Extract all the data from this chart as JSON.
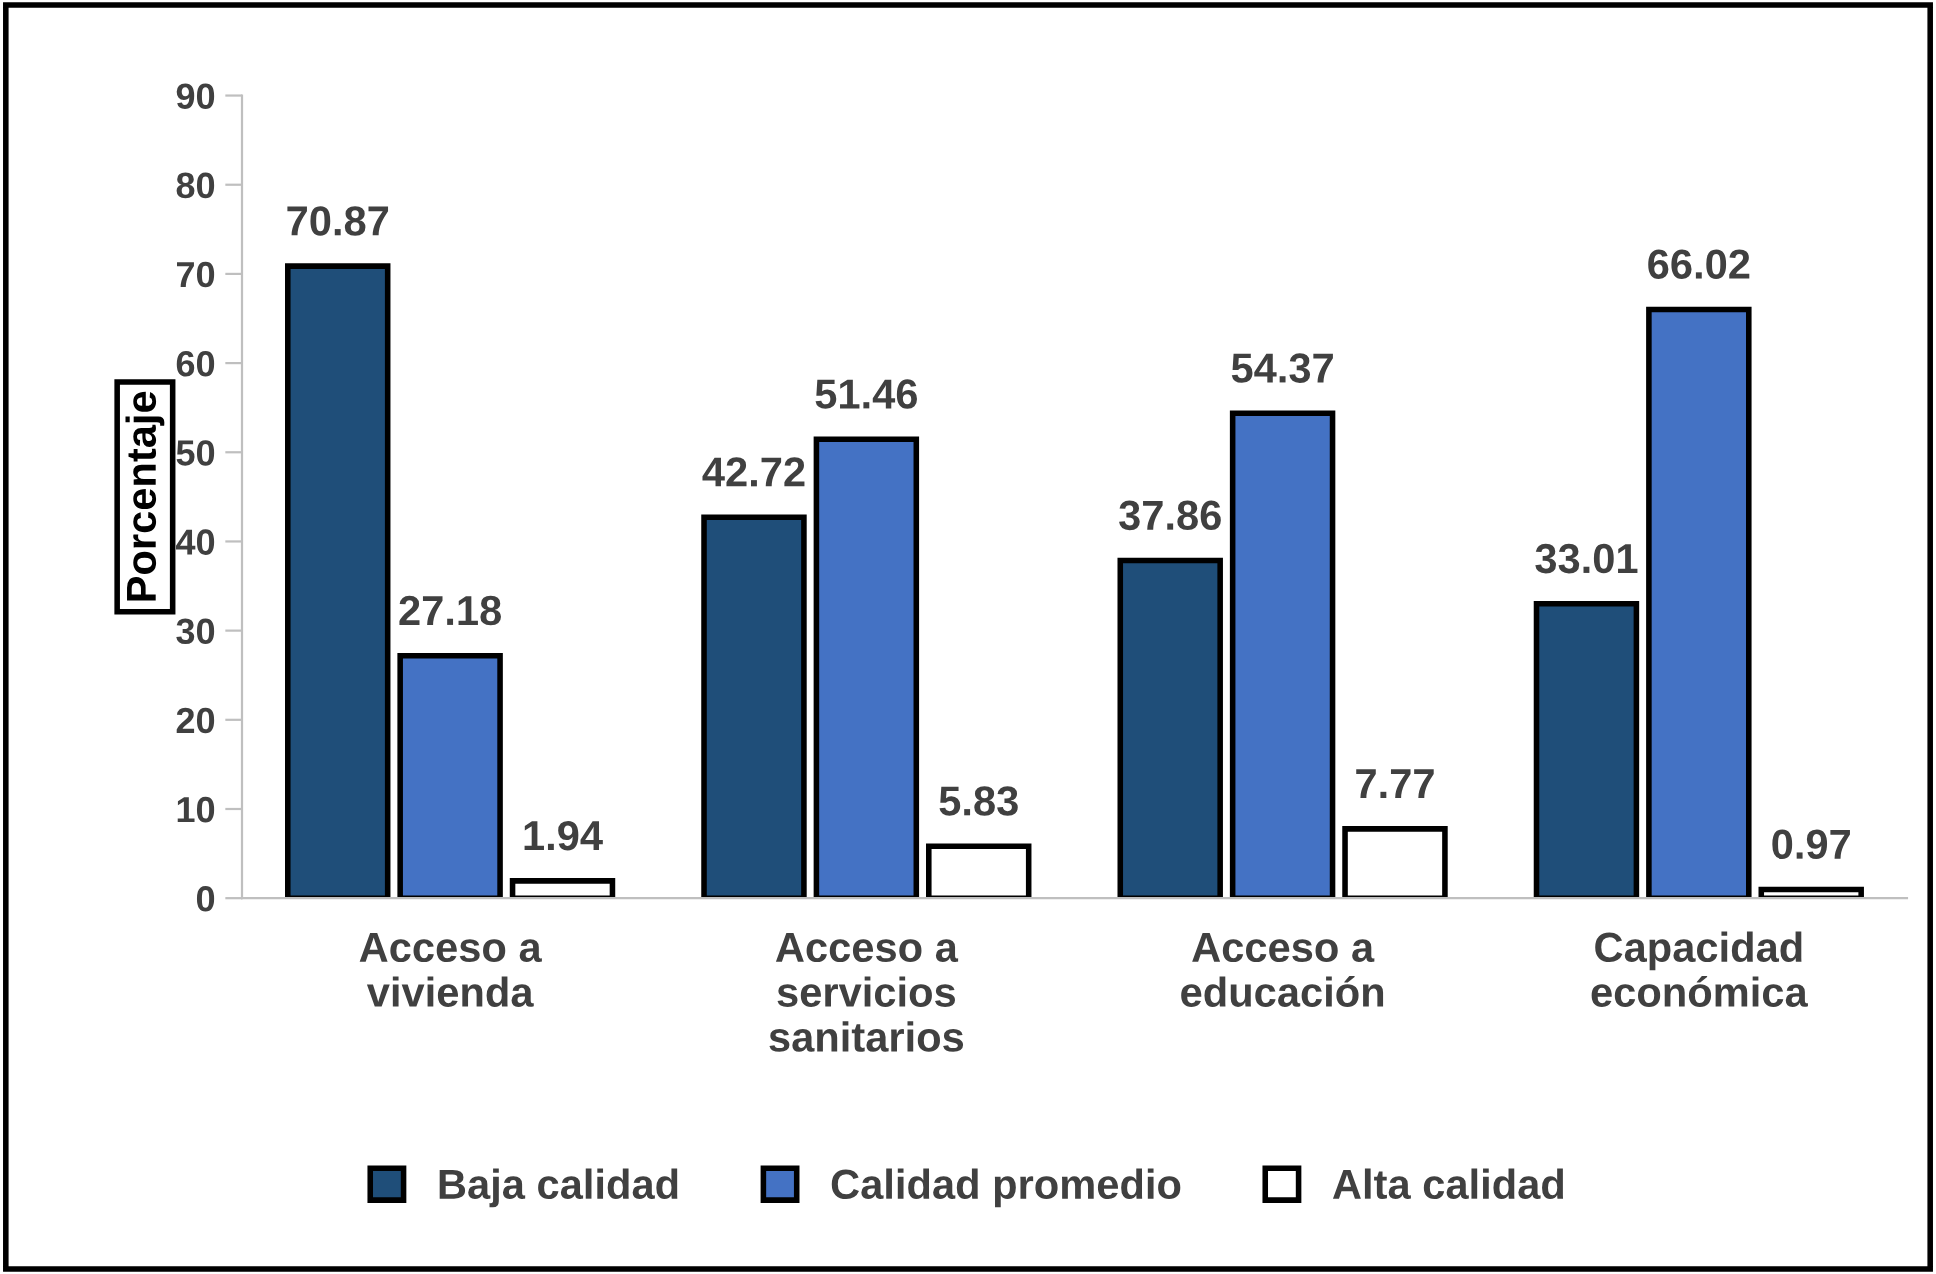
{
  "chart_data": {
    "type": "bar",
    "categories": [
      "Acceso a\nvivienda",
      "Acceso a\nservicios\nsanitarios",
      "Acceso a\neducación",
      "Capacidad\neconómica"
    ],
    "ylabel": "Porcentaje",
    "series": [
      {
        "name": "Baja calidad",
        "color": "#1f4e79",
        "values": [
          70.87,
          42.72,
          37.86,
          33.01
        ]
      },
      {
        "name": "Calidad promedio",
        "color": "#4472c4",
        "values": [
          27.18,
          51.46,
          54.37,
          66.02
        ]
      },
      {
        "name": "Alta calidad",
        "color": "#ffffff",
        "values": [
          1.94,
          5.83,
          7.77,
          0.97
        ]
      }
    ],
    "ylim": [
      0,
      90
    ],
    "yticks": [
      0,
      10,
      20,
      30,
      40,
      50,
      60,
      70,
      80,
      90
    ],
    "data_labels": true,
    "grid": false,
    "legend": "bottom"
  }
}
